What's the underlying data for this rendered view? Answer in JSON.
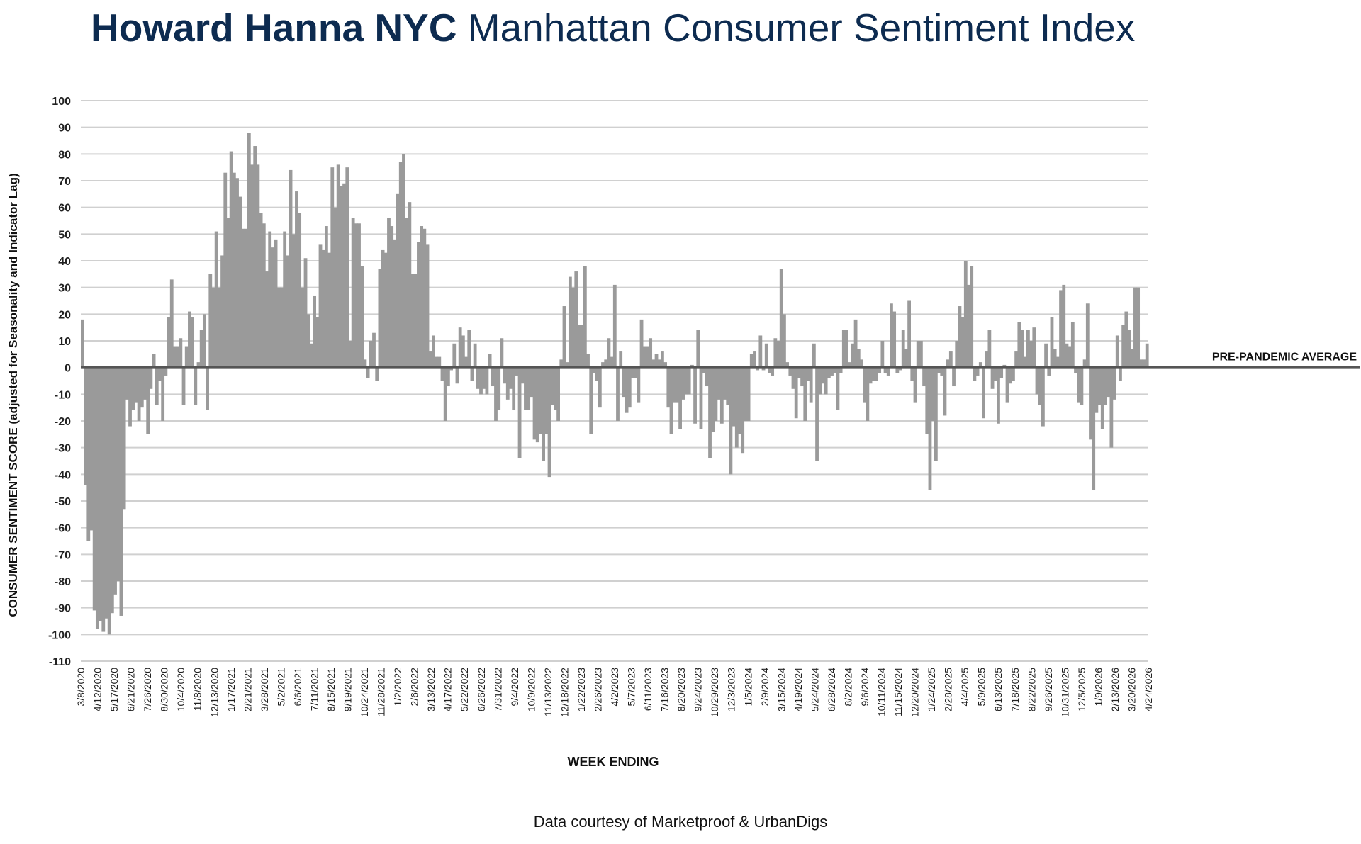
{
  "title": {
    "brand": "Howard Hanna NYC",
    "rest": "Manhattan Consumer Sentiment Index"
  },
  "credit": "Data courtesy of Marketproof & UrbanDigs",
  "colors": {
    "title": "#0d2b50",
    "bar": "#9a9a9a",
    "baseline": "#555555",
    "grid": "#d0d0d0"
  },
  "chart_data": {
    "type": "bar",
    "title": "Howard Hanna NYC Manhattan Consumer Sentiment Index",
    "xlabel": "WEEK ENDING",
    "ylabel": "CONSUMER SENTIMENT SCORE (adjusted for Seasonality and Indicator Lag)",
    "ylim": [
      -110,
      100
    ],
    "yticks": [
      "100",
      "90",
      "80",
      "70",
      "60",
      "50",
      "40",
      "30",
      "20",
      "10",
      "0",
      "-10",
      "-20",
      "-30",
      "-40",
      "-50",
      "-60",
      "-70",
      "-80",
      "-90",
      "-100",
      "-110"
    ],
    "xticks": [
      "3/8/2020",
      "4/12/2020",
      "5/17/2020",
      "6/21/2020",
      "7/26/2020",
      "8/30/2020",
      "10/4/2020",
      "11/8/2020",
      "12/13/2020",
      "1/17/2021",
      "2/21/2021",
      "3/28/2021",
      "5/2/2021",
      "6/6/2021",
      "7/11/2021",
      "8/15/2021",
      "9/19/2021",
      "10/24/2021",
      "11/28/2021",
      "1/2/2022",
      "2/6/2022",
      "3/13/2022",
      "4/17/2022",
      "5/22/2022",
      "6/26/2022",
      "7/31/2022",
      "9/4/2022",
      "10/9/2022",
      "11/13/2022",
      "12/18/2022",
      "1/22/2023",
      "2/26/2023",
      "4/2/2023",
      "5/7/2023",
      "6/11/2023",
      "7/16/2023",
      "8/20/2023",
      "9/24/2023",
      "10/29/2023",
      "12/3/2023",
      "1/5/2024",
      "2/9/2024",
      "3/15/2024",
      "4/19/2024",
      "5/24/2024",
      "6/28/2024",
      "8/2/2024",
      "9/6/2024",
      "10/11/2024",
      "11/15/2024",
      "12/20/2024",
      "1/24/2025",
      "2/28/2025",
      "4/4/2025",
      "5/9/2025",
      "6/13/2025",
      "7/18/2025",
      "8/22/2025",
      "9/26/2025",
      "10/31/2025",
      "12/5/2025",
      "1/9/2026",
      "2/13/2026",
      "3/20/2026",
      "4/24/2026"
    ],
    "reference_line": {
      "label": "PRE-PANDEMIC  AVERAGE",
      "value": 0
    },
    "grid": true,
    "series": [
      {
        "values": [
          18,
          -44,
          -65,
          -61,
          -91,
          -98,
          -95,
          -99,
          -94,
          -100,
          -92,
          -85,
          -80,
          -93,
          -53,
          -12,
          -22,
          -16,
          -13,
          -20,
          -15,
          -12,
          -25,
          -8,
          5,
          -14,
          -5,
          -20,
          -3,
          19,
          33,
          8,
          8,
          11,
          -14,
          8,
          21,
          19,
          -14,
          2,
          14,
          20,
          -16,
          35,
          30,
          51,
          30,
          42,
          73,
          56,
          81,
          73,
          71,
          64,
          52,
          52,
          88,
          76,
          83,
          76,
          58,
          54,
          36,
          51,
          45,
          48,
          30,
          30,
          51,
          42,
          74,
          50,
          66,
          58,
          30,
          41,
          20,
          9,
          27,
          19,
          46,
          44,
          53,
          43,
          75,
          60,
          76,
          68,
          69,
          75,
          10,
          56,
          54,
          54,
          38,
          3,
          -4,
          10,
          13,
          -5,
          37,
          44,
          43,
          56,
          53,
          48,
          65,
          77,
          80,
          56,
          62,
          35,
          35,
          47,
          53,
          52,
          46,
          6,
          12,
          4,
          4,
          -5,
          -20,
          -7,
          -1,
          9,
          -6,
          15,
          12,
          4,
          14,
          -5,
          9,
          -8,
          -10,
          -8,
          -10,
          5,
          -7,
          -20,
          -16,
          11,
          -6,
          -12,
          -8,
          -16,
          -3,
          -34,
          -6,
          -16,
          -16,
          -11,
          -27,
          -28,
          -25,
          -35,
          -25,
          -41,
          -14,
          -16,
          -20,
          3,
          23,
          2,
          34,
          30,
          36,
          16,
          16,
          38,
          5,
          -25,
          -2,
          -5,
          -15,
          2,
          3,
          11,
          4,
          31,
          -20,
          6,
          -11,
          -17,
          -15,
          -4,
          -4,
          -13,
          18,
          8,
          8,
          11,
          3,
          5,
          3,
          6,
          2,
          -15,
          -25,
          -13,
          -13,
          -23,
          -12,
          -10,
          -10,
          1,
          -21,
          14,
          -23,
          -2,
          -7,
          -34,
          -24,
          -20,
          -12,
          -21,
          -12,
          -14,
          -40,
          -22,
          -30,
          -25,
          -32,
          -20,
          -20,
          5,
          6,
          -1,
          12,
          -1,
          9,
          -2,
          -3,
          11,
          10,
          37,
          20,
          2,
          -3,
          -8,
          -19,
          -4,
          -7,
          -20,
          -5,
          -13,
          9,
          -35,
          -10,
          -6,
          -10,
          -4,
          -3,
          -2,
          -16,
          -2,
          14,
          14,
          2,
          9,
          18,
          7,
          3,
          -13,
          -20,
          -6,
          -5,
          -5,
          -2,
          10,
          -2,
          -3,
          24,
          21,
          -2,
          -1,
          14,
          7,
          25,
          -5,
          -13,
          10,
          10,
          -7,
          -25,
          -46,
          -20,
          -35,
          -2,
          -3,
          -18,
          3,
          6,
          -7,
          10,
          23,
          19,
          40,
          31,
          38,
          -5,
          -3,
          2,
          -19,
          6,
          14,
          -8,
          -5,
          -21,
          -4,
          1,
          -13,
          -6,
          -5,
          6,
          17,
          14,
          4,
          14,
          10,
          15,
          -10,
          -14,
          -22,
          9,
          -3,
          19,
          7,
          4,
          29,
          31,
          9,
          8,
          17,
          -2,
          -13,
          -14,
          3,
          24,
          -27,
          -46,
          -17,
          -14,
          -23,
          -14,
          -11,
          -30,
          -12,
          12,
          -5,
          16,
          21,
          14,
          7,
          30,
          30,
          3,
          3,
          9
        ]
      }
    ]
  }
}
